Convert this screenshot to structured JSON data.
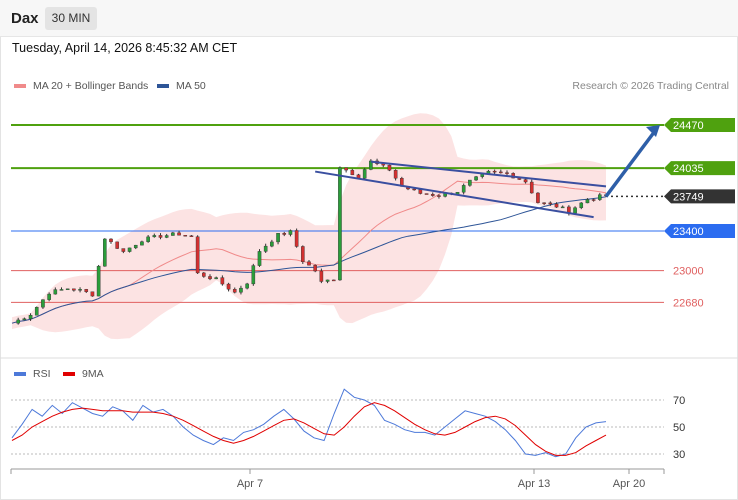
{
  "header": {
    "symbol": "Dax",
    "timeframe": "30 MIN"
  },
  "datetime": "Tuesday, April 14, 2026 8:45:32 AM CET",
  "legend": {
    "ma20_label": "MA 20 + Bollinger Bands",
    "ma50_label": "MA 50",
    "ma20_color": "#f08a8a",
    "ma50_color": "#2e5597",
    "credit": "Research © 2026 Trading Central"
  },
  "rsi_legend": {
    "rsi_label": "RSI",
    "ma_label": "9MA",
    "rsi_color": "#4d79d9",
    "ma_color": "#e00000"
  },
  "colors": {
    "resistance": "#4fa10f",
    "support": "#2b6cf0",
    "minor_support": "#e06060",
    "current": "#333333",
    "channel": "#3a4fa0",
    "arrow": "#2e5fa8",
    "band_fill": "#fbd9d9"
  },
  "chart_data": [
    {
      "type": "candlestick",
      "title": "Dax 30 MIN",
      "x_tick_labels": [
        "Apr 7",
        "Apr 13",
        "Apr 20"
      ],
      "ylim": [
        22400,
        24950
      ],
      "grid": false,
      "overlays": [
        "MA 20 + Bollinger Bands",
        "MA 50"
      ],
      "levels": [
        {
          "value": 24470,
          "label": "24470",
          "kind": "resistance"
        },
        {
          "value": 24035,
          "label": "24035",
          "kind": "resistance"
        },
        {
          "value": 23749,
          "label": "23749",
          "kind": "current"
        },
        {
          "value": 23400,
          "label": "23400",
          "kind": "support"
        },
        {
          "value": 23000,
          "label": "23000",
          "kind": "minor-support"
        },
        {
          "value": 22680,
          "label": "22680",
          "kind": "minor-support"
        }
      ],
      "price_path": [
        [
          0,
          22470
        ],
        [
          3,
          22560
        ],
        [
          6,
          22780
        ],
        [
          9,
          22820
        ],
        [
          11,
          22800
        ],
        [
          13,
          22760
        ],
        [
          15,
          23330
        ],
        [
          18,
          23190
        ],
        [
          21,
          23310
        ],
        [
          24,
          23350
        ],
        [
          27,
          23370
        ],
        [
          29,
          23340
        ],
        [
          30,
          22970
        ],
        [
          33,
          22910
        ],
        [
          36,
          22780
        ],
        [
          38,
          22880
        ],
        [
          40,
          23200
        ],
        [
          43,
          23360
        ],
        [
          45,
          23390
        ],
        [
          47,
          23100
        ],
        [
          49,
          23000
        ],
        [
          50,
          22880
        ],
        [
          52,
          22920
        ],
        [
          53,
          24050
        ],
        [
          56,
          23950
        ],
        [
          58,
          24100
        ],
        [
          61,
          24020
        ],
        [
          63,
          23850
        ],
        [
          66,
          23780
        ],
        [
          69,
          23760
        ],
        [
          72,
          23800
        ],
        [
          74,
          23900
        ],
        [
          77,
          23990
        ],
        [
          80,
          23980
        ],
        [
          83,
          23900
        ],
        [
          85,
          23690
        ],
        [
          88,
          23650
        ],
        [
          90,
          23600
        ],
        [
          93,
          23720
        ],
        [
          96,
          23760
        ]
      ],
      "channel": {
        "start": [
          51,
          24000
        ],
        "end": [
          96,
          23560
        ],
        "upper_start": [
          58,
          24100
        ],
        "upper_end": [
          96,
          23850
        ]
      },
      "projection": {
        "from": 23749,
        "to": 24470
      }
    },
    {
      "type": "line",
      "title": "RSI",
      "series": [
        {
          "name": "RSI"
        },
        {
          "name": "9MA"
        }
      ],
      "y_tick_labels": [
        "70",
        "50",
        "30"
      ],
      "ylim": [
        20,
        80
      ],
      "rsi": [
        42,
        52,
        63,
        58,
        66,
        60,
        68,
        64,
        60,
        58,
        65,
        62,
        55,
        66,
        61,
        63,
        58,
        50,
        44,
        40,
        37,
        42,
        40,
        46,
        48,
        52,
        58,
        63,
        56,
        47,
        42,
        40,
        60,
        78,
        72,
        70,
        66,
        55,
        52,
        48,
        46,
        46,
        44,
        50,
        56,
        62,
        60,
        58,
        54,
        48,
        40,
        30,
        29,
        31,
        28,
        30,
        42,
        50,
        53,
        54
      ],
      "ma9": [
        40,
        44,
        50,
        54,
        58,
        61,
        63,
        64,
        63,
        62,
        62,
        62,
        61,
        61,
        61,
        60,
        58,
        55,
        51,
        47,
        43,
        40,
        38,
        40,
        43,
        47,
        51,
        55,
        56,
        53,
        49,
        45,
        44,
        50,
        58,
        65,
        68,
        66,
        62,
        57,
        52,
        48,
        45,
        44,
        46,
        50,
        54,
        57,
        58,
        56,
        51,
        44,
        37,
        32,
        29,
        29,
        31,
        36,
        40,
        44
      ]
    }
  ]
}
